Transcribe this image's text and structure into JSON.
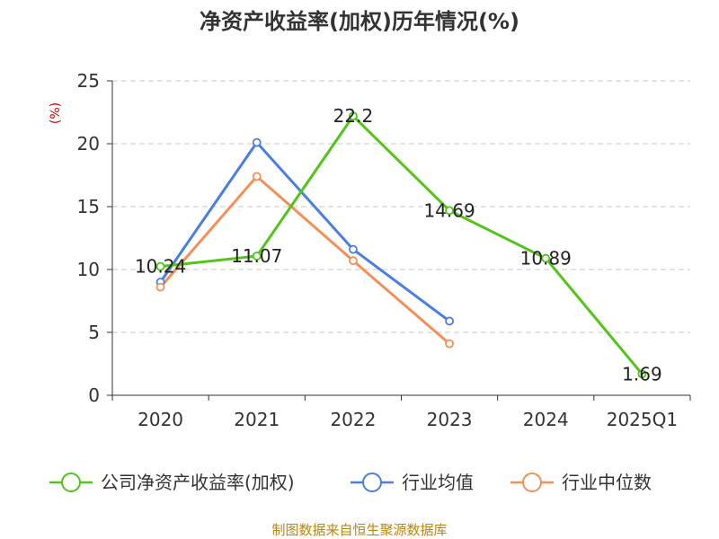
{
  "chart_data": {
    "type": "line",
    "title": "净资产收益率(加权)历年情况(%)",
    "ylabel": "(%)",
    "ylim": [
      0,
      25
    ],
    "yticks": [
      0,
      5,
      10,
      15,
      20,
      25
    ],
    "categories": [
      "2020",
      "2021",
      "2022",
      "2023",
      "2024",
      "2025Q1"
    ],
    "grid": true,
    "series": [
      {
        "name": "公司净资产收益率(加权)",
        "color": "#52c41a",
        "values": [
          10.24,
          11.07,
          22.2,
          14.69,
          10.89,
          1.69
        ],
        "labels": [
          "10.24",
          "11.07",
          "22.2",
          "14.69",
          "10.89",
          "1.69"
        ]
      },
      {
        "name": "行业均值",
        "color": "#4a7fe0",
        "values": [
          9.0,
          20.1,
          11.6,
          5.9,
          null,
          null
        ]
      },
      {
        "name": "行业中位数",
        "color": "#f39058",
        "values": [
          8.6,
          17.4,
          10.7,
          4.1,
          null,
          null
        ]
      }
    ],
    "legend_position": "bottom",
    "source": "制图数据来自恒生聚源数据库"
  }
}
